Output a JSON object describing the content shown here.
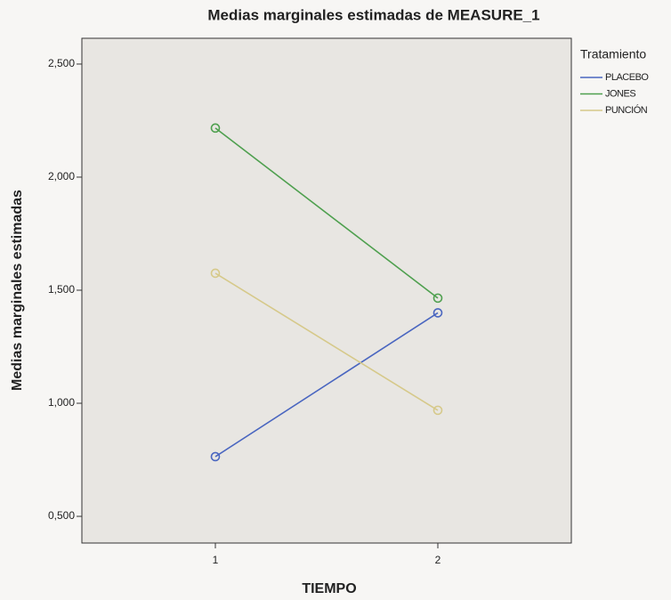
{
  "chart_data": {
    "type": "line",
    "title": "Medias marginales estimadas de MEASURE_1",
    "x_label": "TIEMPO",
    "y_label": "Medias marginales estimadas",
    "x": [
      1,
      2
    ],
    "xlim": [
      0.4,
      2.6
    ],
    "xticks": [
      1,
      2
    ],
    "ylim": [
      0.382,
      2.614
    ],
    "yticks": [
      {
        "value": 0.5,
        "label": "0,500"
      },
      {
        "value": 1.0,
        "label": "1,000"
      },
      {
        "value": 1.5,
        "label": "1,500"
      },
      {
        "value": 2.0,
        "label": "2,000"
      },
      {
        "value": 2.5,
        "label": "2,500"
      }
    ],
    "legend_title": "Tratamiento",
    "legend": "right",
    "series": [
      {
        "name": "PLACEBO",
        "color": "#4a66c0",
        "values": [
          0.764,
          1.4
        ]
      },
      {
        "name": "JONES",
        "color": "#4fa04f",
        "values": [
          2.217,
          1.465
        ]
      },
      {
        "name": "PUNCIÓN",
        "color": "#d6c98a",
        "values": [
          1.575,
          0.969
        ]
      }
    ]
  }
}
